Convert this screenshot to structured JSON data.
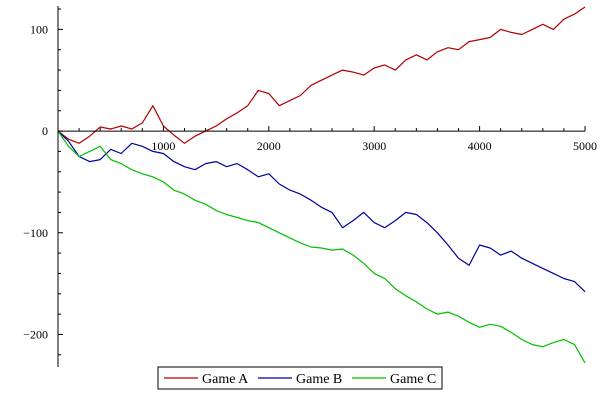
{
  "chart_data": {
    "type": "line",
    "title": "",
    "xlabel": "",
    "ylabel": "",
    "xlim": [
      0,
      5000
    ],
    "ylim": [
      -232,
      123
    ],
    "x_ticks": [
      1000,
      2000,
      3000,
      4000,
      5000
    ],
    "x_tick_labels": [
      "1000",
      "2000",
      "3000",
      "4000",
      "5000"
    ],
    "y_ticks": [
      100,
      0,
      -100,
      -200
    ],
    "y_tick_labels": [
      "100",
      "0",
      "−100",
      "−200"
    ],
    "grid": false,
    "legend_position": "bottom-center",
    "series": [
      {
        "name": "Game A",
        "color": "#b20000",
        "x": [
          0,
          100,
          200,
          300,
          400,
          500,
          600,
          700,
          800,
          900,
          1000,
          1100,
          1200,
          1300,
          1400,
          1500,
          1600,
          1700,
          1800,
          1900,
          2000,
          2100,
          2200,
          2300,
          2400,
          2500,
          2600,
          2700,
          2800,
          2900,
          3000,
          3100,
          3200,
          3300,
          3400,
          3500,
          3600,
          3700,
          3800,
          3900,
          4000,
          4100,
          4200,
          4300,
          4400,
          4500,
          4600,
          4700,
          4800,
          4900,
          5000
        ],
        "values": [
          0,
          -8,
          -12,
          -5,
          4,
          2,
          5,
          2,
          8,
          25,
          5,
          -4,
          -12,
          -5,
          0,
          5,
          12,
          18,
          25,
          40,
          37,
          25,
          30,
          35,
          45,
          50,
          55,
          60,
          58,
          55,
          62,
          65,
          60,
          70,
          75,
          70,
          78,
          82,
          80,
          88,
          90,
          92,
          100,
          97,
          95,
          100,
          105,
          100,
          110,
          115,
          122
        ]
      },
      {
        "name": "Game B",
        "color": "#00009e",
        "x": [
          0,
          100,
          200,
          300,
          400,
          500,
          600,
          700,
          800,
          900,
          1000,
          1100,
          1200,
          1300,
          1400,
          1500,
          1600,
          1700,
          1800,
          1900,
          2000,
          2100,
          2200,
          2300,
          2400,
          2500,
          2600,
          2700,
          2800,
          2900,
          3000,
          3100,
          3200,
          3300,
          3400,
          3500,
          3600,
          3700,
          3800,
          3900,
          4000,
          4100,
          4200,
          4300,
          4400,
          4500,
          4600,
          4700,
          4800,
          4900,
          5000
        ],
        "values": [
          0,
          -10,
          -25,
          -30,
          -28,
          -18,
          -22,
          -12,
          -15,
          -20,
          -22,
          -30,
          -35,
          -38,
          -32,
          -30,
          -35,
          -32,
          -38,
          -45,
          -42,
          -52,
          -58,
          -62,
          -68,
          -75,
          -80,
          -95,
          -88,
          -80,
          -90,
          -95,
          -88,
          -80,
          -82,
          -90,
          -100,
          -112,
          -125,
          -132,
          -112,
          -115,
          -122,
          -118,
          -125,
          -130,
          -135,
          -140,
          -145,
          -148,
          -158
        ]
      },
      {
        "name": "Game C",
        "color": "#00c000",
        "x": [
          0,
          100,
          200,
          300,
          400,
          500,
          600,
          700,
          800,
          900,
          1000,
          1100,
          1200,
          1300,
          1400,
          1500,
          1600,
          1700,
          1800,
          1900,
          2000,
          2100,
          2200,
          2300,
          2400,
          2500,
          2600,
          2700,
          2800,
          2900,
          3000,
          3100,
          3200,
          3300,
          3400,
          3500,
          3600,
          3700,
          3800,
          3900,
          4000,
          4100,
          4200,
          4300,
          4400,
          4500,
          4600,
          4700,
          4800,
          4900,
          5000
        ],
        "values": [
          0,
          -15,
          -25,
          -20,
          -15,
          -28,
          -32,
          -38,
          -42,
          -45,
          -50,
          -58,
          -62,
          -68,
          -72,
          -78,
          -82,
          -85,
          -88,
          -90,
          -95,
          -100,
          -105,
          -110,
          -114,
          -115,
          -117,
          -116,
          -122,
          -130,
          -140,
          -145,
          -155,
          -162,
          -168,
          -175,
          -180,
          -178,
          -182,
          -188,
          -193,
          -190,
          -192,
          -198,
          -205,
          -210,
          -212,
          -208,
          -205,
          -210,
          -228
        ]
      }
    ]
  }
}
